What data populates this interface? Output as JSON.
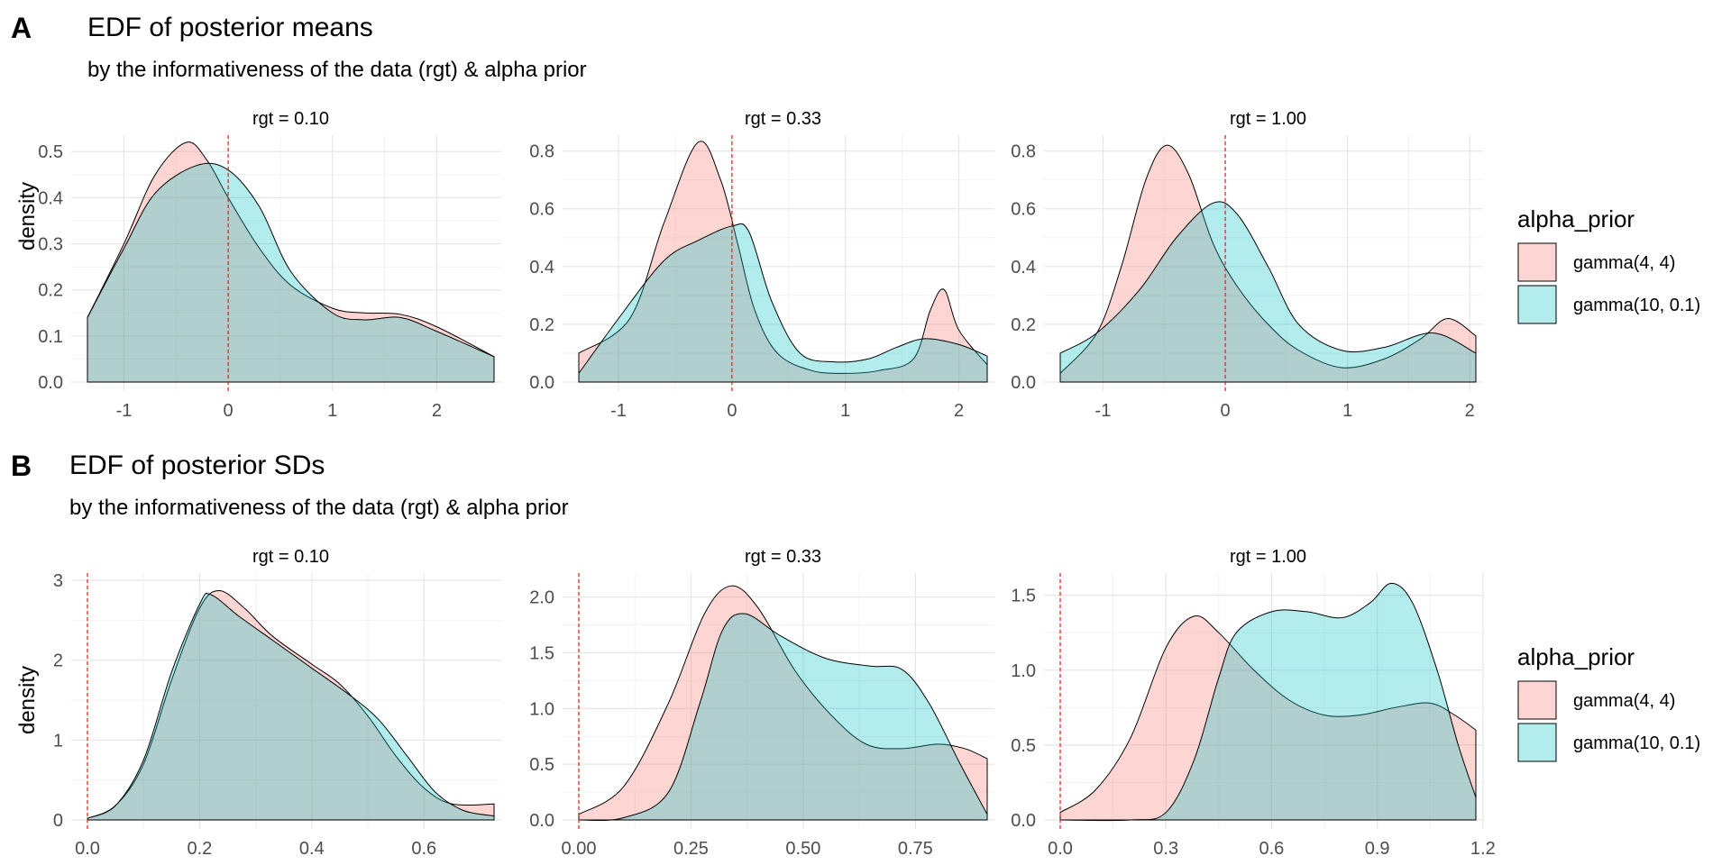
{
  "panels": [
    {
      "label": "A",
      "title": "EDF of posterior means",
      "subtitle": "by the informativeness of the data (rgt) & alpha prior",
      "ylabel": "density"
    },
    {
      "label": "B",
      "title": "EDF of posterior SDs",
      "subtitle": "by the informativeness of the data (rgt) & alpha prior",
      "ylabel": "density"
    }
  ],
  "legend": {
    "title": "alpha_prior",
    "items": [
      {
        "label": "gamma(4, 4)",
        "color": "#F8766D"
      },
      {
        "label": "gamma(10, 0.1)",
        "color": "#00BFC4"
      }
    ]
  },
  "reference_line_color": "#e8181a",
  "chart_data": [
    {
      "type": "area",
      "panel": "A",
      "facet": "rgt = 0.10",
      "xlim": [
        -1.35,
        2.55
      ],
      "ylim": [
        0,
        0.52
      ],
      "xticks": [
        -1,
        0,
        1,
        2
      ],
      "yticks": [
        0.0,
        0.1,
        0.2,
        0.3,
        0.4,
        0.5
      ],
      "xtick_labels": [
        "-1",
        "0",
        "1",
        "2"
      ],
      "ytick_labels": [
        "0.0",
        "0.1",
        "0.2",
        "0.3",
        "0.4",
        "0.5"
      ],
      "vline": 0,
      "series": [
        {
          "name": "gamma(4, 4)",
          "x": [
            -1.35,
            -1.0,
            -0.7,
            -0.4,
            -0.2,
            0.0,
            0.3,
            0.6,
            1.0,
            1.3,
            1.65,
            2.0,
            2.55
          ],
          "y": [
            0.14,
            0.3,
            0.45,
            0.52,
            0.48,
            0.4,
            0.29,
            0.21,
            0.16,
            0.15,
            0.147,
            0.12,
            0.055
          ]
        },
        {
          "name": "gamma(10, 0.1)",
          "x": [
            -1.35,
            -1.0,
            -0.7,
            -0.3,
            0.0,
            0.3,
            0.6,
            1.0,
            1.3,
            1.65,
            2.0,
            2.55
          ],
          "y": [
            0.14,
            0.29,
            0.41,
            0.47,
            0.46,
            0.38,
            0.24,
            0.15,
            0.135,
            0.14,
            0.11,
            0.055
          ]
        }
      ]
    },
    {
      "type": "area",
      "panel": "A",
      "facet": "rgt = 0.33",
      "xlim": [
        -1.35,
        2.25
      ],
      "ylim": [
        0,
        0.83
      ],
      "xticks": [
        -1,
        0,
        1,
        2
      ],
      "yticks": [
        0.0,
        0.2,
        0.4,
        0.6,
        0.8
      ],
      "xtick_labels": [
        "-1",
        "0",
        "1",
        "2"
      ],
      "ytick_labels": [
        "0.0",
        "0.2",
        "0.4",
        "0.6",
        "0.8"
      ],
      "vline": 0,
      "series": [
        {
          "name": "gamma(4, 4)",
          "x": [
            -1.35,
            -0.9,
            -0.6,
            -0.3,
            -0.1,
            0.05,
            0.2,
            0.4,
            0.7,
            1.0,
            1.3,
            1.6,
            1.75,
            1.87,
            2.0,
            2.25
          ],
          "y": [
            0.1,
            0.22,
            0.55,
            0.83,
            0.7,
            0.48,
            0.25,
            0.1,
            0.04,
            0.03,
            0.04,
            0.08,
            0.25,
            0.32,
            0.18,
            0.06
          ]
        },
        {
          "name": "gamma(10, 0.1)",
          "x": [
            -1.35,
            -1.0,
            -0.6,
            -0.3,
            0.0,
            0.15,
            0.35,
            0.6,
            0.9,
            1.2,
            1.45,
            1.7,
            2.0,
            2.25
          ],
          "y": [
            0.03,
            0.22,
            0.42,
            0.49,
            0.54,
            0.52,
            0.28,
            0.1,
            0.07,
            0.08,
            0.12,
            0.15,
            0.13,
            0.09
          ]
        }
      ]
    },
    {
      "type": "area",
      "panel": "A",
      "facet": "rgt = 1.00",
      "xlim": [
        -1.35,
        2.05
      ],
      "ylim": [
        0,
        0.83
      ],
      "xticks": [
        -1,
        0,
        1,
        2
      ],
      "yticks": [
        0.0,
        0.2,
        0.4,
        0.6,
        0.8
      ],
      "xtick_labels": [
        "-1",
        "0",
        "1",
        "2"
      ],
      "ytick_labels": [
        "0.0",
        "0.2",
        "0.4",
        "0.6",
        "0.8"
      ],
      "vline": 0,
      "series": [
        {
          "name": "gamma(4, 4)",
          "x": [
            -1.35,
            -1.05,
            -0.85,
            -0.65,
            -0.48,
            -0.3,
            -0.1,
            0.1,
            0.35,
            0.6,
            0.95,
            1.3,
            1.6,
            1.82,
            2.05
          ],
          "y": [
            0.03,
            0.17,
            0.4,
            0.7,
            0.82,
            0.72,
            0.48,
            0.33,
            0.2,
            0.11,
            0.05,
            0.08,
            0.15,
            0.22,
            0.16
          ]
        },
        {
          "name": "gamma(10, 0.1)",
          "x": [
            -1.35,
            -1.05,
            -0.7,
            -0.4,
            -0.1,
            0.1,
            0.35,
            0.6,
            0.95,
            1.3,
            1.7,
            2.05
          ],
          "y": [
            0.1,
            0.17,
            0.32,
            0.5,
            0.62,
            0.58,
            0.4,
            0.2,
            0.11,
            0.12,
            0.17,
            0.1
          ]
        }
      ]
    },
    {
      "type": "area",
      "panel": "B",
      "facet": "rgt = 0.10",
      "xlim": [
        0.0,
        0.725
      ],
      "ylim": [
        0,
        3.0
      ],
      "xticks": [
        0.0,
        0.2,
        0.4,
        0.6
      ],
      "yticks": [
        0,
        1,
        2,
        3
      ],
      "xtick_labels": [
        "0.0",
        "0.2",
        "0.4",
        "0.6"
      ],
      "ytick_labels": [
        "0",
        "1",
        "2",
        "3"
      ],
      "vline": 0,
      "series": [
        {
          "name": "gamma(4, 4)",
          "x": [
            0.0,
            0.05,
            0.1,
            0.15,
            0.2,
            0.235,
            0.28,
            0.33,
            0.4,
            0.45,
            0.5,
            0.55,
            0.6,
            0.65,
            0.725
          ],
          "y": [
            0.02,
            0.18,
            0.7,
            1.75,
            2.65,
            2.87,
            2.65,
            2.3,
            1.95,
            1.7,
            1.3,
            0.8,
            0.4,
            0.2,
            0.2
          ]
        },
        {
          "name": "gamma(10, 0.1)",
          "x": [
            0.0,
            0.05,
            0.1,
            0.15,
            0.2,
            0.22,
            0.27,
            0.33,
            0.4,
            0.47,
            0.52,
            0.57,
            0.62,
            0.67,
            0.725
          ],
          "y": [
            0.02,
            0.18,
            0.75,
            1.85,
            2.7,
            2.82,
            2.55,
            2.25,
            1.9,
            1.55,
            1.25,
            0.8,
            0.35,
            0.12,
            0.05
          ]
        }
      ]
    },
    {
      "type": "area",
      "panel": "B",
      "facet": "rgt = 0.33",
      "xlim": [
        0.0,
        0.91
      ],
      "ylim": [
        0,
        2.15
      ],
      "xticks": [
        0.0,
        0.25,
        0.5,
        0.75
      ],
      "yticks": [
        0.0,
        0.5,
        1.0,
        1.5,
        2.0
      ],
      "xtick_labels": [
        "0.00",
        "0.25",
        "0.50",
        "0.75"
      ],
      "ytick_labels": [
        "0.0",
        "0.5",
        "1.0",
        "1.5",
        "2.0"
      ],
      "vline": 0,
      "series": [
        {
          "name": "gamma(4, 4)",
          "x": [
            0.0,
            0.1,
            0.2,
            0.28,
            0.34,
            0.4,
            0.48,
            0.56,
            0.64,
            0.72,
            0.8,
            0.86,
            0.91
          ],
          "y": [
            0.05,
            0.3,
            1.05,
            1.85,
            2.1,
            1.9,
            1.35,
            0.95,
            0.68,
            0.64,
            0.68,
            0.64,
            0.55
          ]
        },
        {
          "name": "gamma(10, 0.1)",
          "x": [
            0.0,
            0.1,
            0.2,
            0.27,
            0.32,
            0.37,
            0.45,
            0.55,
            0.65,
            0.72,
            0.78,
            0.85,
            0.91
          ],
          "y": [
            0.0,
            0.02,
            0.25,
            1.05,
            1.7,
            1.85,
            1.65,
            1.45,
            1.38,
            1.35,
            1.05,
            0.5,
            0.05
          ]
        }
      ]
    },
    {
      "type": "area",
      "panel": "B",
      "facet": "rgt = 1.00",
      "xlim": [
        0.0,
        1.18
      ],
      "ylim": [
        0,
        1.6
      ],
      "xticks": [
        0.0,
        0.3,
        0.6,
        0.9,
        1.2
      ],
      "yticks": [
        0.0,
        0.5,
        1.0,
        1.5
      ],
      "xtick_labels": [
        "0.0",
        "0.3",
        "0.6",
        "0.9",
        "1.2"
      ],
      "ytick_labels": [
        "0.0",
        "0.5",
        "1.0",
        "1.5"
      ],
      "vline": 0,
      "series": [
        {
          "name": "gamma(4, 4)",
          "x": [
            0.0,
            0.1,
            0.2,
            0.3,
            0.38,
            0.45,
            0.55,
            0.65,
            0.75,
            0.85,
            0.95,
            1.05,
            1.12,
            1.18
          ],
          "y": [
            0.05,
            0.2,
            0.55,
            1.15,
            1.36,
            1.25,
            1.0,
            0.8,
            0.7,
            0.7,
            0.75,
            0.78,
            0.7,
            0.6
          ]
        },
        {
          "name": "gamma(10, 0.1)",
          "x": [
            0.0,
            0.2,
            0.3,
            0.38,
            0.45,
            0.5,
            0.6,
            0.7,
            0.8,
            0.88,
            0.94,
            1.0,
            1.07,
            1.13,
            1.18
          ],
          "y": [
            0.0,
            0.0,
            0.05,
            0.4,
            0.95,
            1.25,
            1.39,
            1.39,
            1.35,
            1.45,
            1.58,
            1.45,
            1.0,
            0.5,
            0.15
          ]
        }
      ]
    }
  ]
}
